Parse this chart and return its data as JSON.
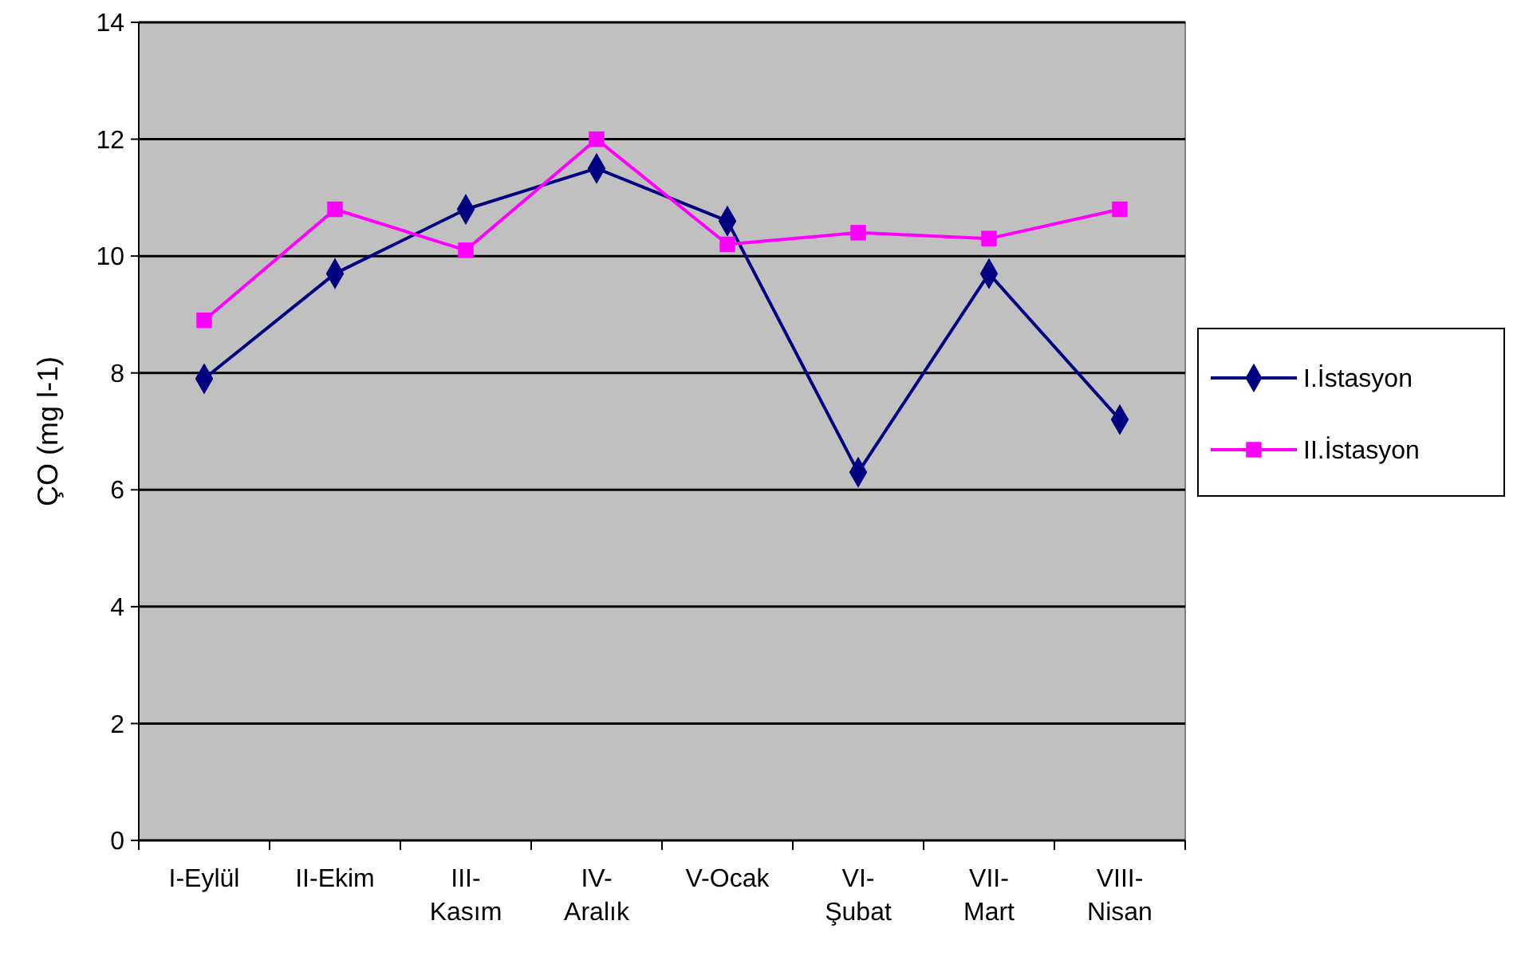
{
  "chart_data": {
    "type": "line",
    "ylabel": "ÇO (mg l-1)",
    "categories": [
      "I-Eylül",
      "II-Ekim",
      "III-\nKasım",
      "IV-\nAralık",
      "V-Ocak",
      "VI-\nŞubat",
      "VII-\nMart",
      "VIII-\nNisan"
    ],
    "series": [
      {
        "name": "I.İstasyon",
        "color": "#000080",
        "marker": "diamond",
        "values": [
          7.9,
          9.7,
          10.8,
          11.5,
          10.6,
          6.3,
          9.7,
          7.2
        ]
      },
      {
        "name": "II.İstasyon",
        "color": "#ff00ff",
        "marker": "square",
        "values": [
          8.9,
          10.8,
          10.1,
          12.0,
          10.2,
          10.4,
          10.3,
          10.8
        ]
      }
    ],
    "ylim": [
      0,
      14
    ],
    "yticks": [
      0,
      2,
      4,
      6,
      8,
      10,
      12,
      14
    ],
    "grid": "y",
    "legend": "right",
    "line_style": "solid"
  }
}
